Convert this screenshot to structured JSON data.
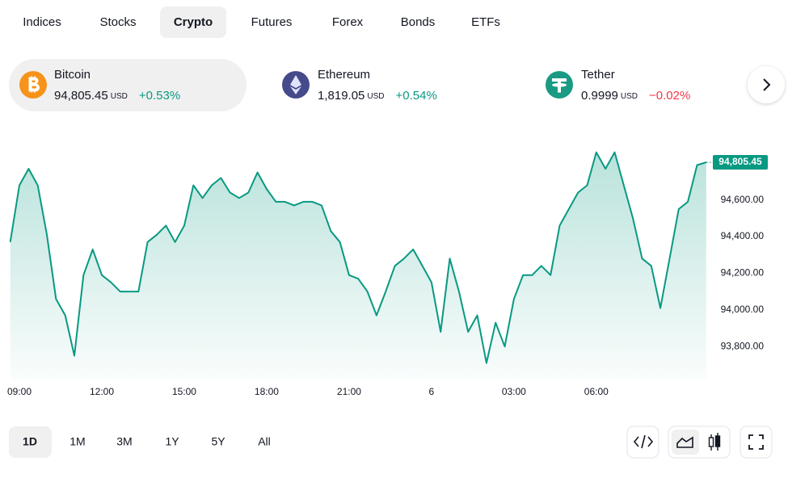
{
  "tabs": [
    "Indices",
    "Stocks",
    "Crypto",
    "Futures",
    "Forex",
    "Bonds",
    "ETFs"
  ],
  "selected_tab": 2,
  "tickers": [
    {
      "name": "Bitcoin",
      "price": "94,805.45",
      "unit": "USD",
      "change": "+0.53%"
    },
    {
      "name": "Ethereum",
      "price": "1,819.05",
      "unit": "USD",
      "change": "+0.54%"
    },
    {
      "name": "Tether",
      "price": "0.9999",
      "unit": "USD",
      "change": "−0.02%"
    }
  ],
  "chart_data": {
    "type": "line",
    "color": "#089981",
    "categories": [
      null,
      "09:00",
      null,
      null,
      null,
      null,
      null,
      null,
      null,
      null,
      "12:00",
      null,
      null,
      null,
      null,
      null,
      null,
      null,
      null,
      "15:00",
      null,
      null,
      null,
      null,
      null,
      null,
      null,
      null,
      "18:00",
      null,
      null,
      null,
      null,
      null,
      null,
      null,
      null,
      "21:00",
      null,
      null,
      null,
      null,
      null,
      null,
      null,
      null,
      "6",
      null,
      null,
      null,
      null,
      null,
      null,
      null,
      null,
      "03:00",
      null,
      null,
      null,
      null,
      null,
      null,
      null,
      null,
      "06:00",
      null,
      null,
      null,
      null,
      null,
      null,
      null,
      null,
      null,
      null,
      null,
      null
    ],
    "values": [
      94370,
      94680,
      94770,
      94680,
      94410,
      94060,
      93970,
      93750,
      94190,
      94330,
      94190,
      94150,
      94100,
      94100,
      94100,
      94370,
      94410,
      94460,
      94370,
      94460,
      94680,
      94610,
      94680,
      94720,
      94640,
      94610,
      94640,
      94750,
      94660,
      94590,
      94590,
      94570,
      94590,
      94590,
      94570,
      94430,
      94370,
      94190,
      94170,
      94100,
      93970,
      94100,
      94240,
      94280,
      94330,
      94240,
      94150,
      93880,
      94280,
      94100,
      93880,
      93970,
      93710,
      93930,
      93800,
      94060,
      94190,
      94190,
      94240,
      94190,
      94460,
      94550,
      94640,
      94680,
      94860,
      94770,
      94860,
      94680,
      94500,
      94280,
      94240,
      94010,
      94280,
      94550,
      94590,
      94790,
      94805.45
    ],
    "value_labels": [
      null,
      null,
      null,
      null,
      null,
      null,
      null,
      null,
      null,
      null,
      null,
      null,
      null,
      null,
      null,
      null,
      null,
      null,
      null,
      null,
      null,
      null,
      null,
      null,
      null,
      null,
      null,
      null,
      null,
      null,
      null,
      null,
      null,
      null,
      null,
      null,
      null,
      null,
      null,
      null,
      null,
      null,
      null,
      null,
      null,
      null,
      null,
      null,
      null,
      null,
      null,
      null,
      null,
      null,
      null,
      null,
      null,
      null,
      null,
      null,
      null,
      null,
      null,
      null,
      null,
      null,
      null,
      null,
      null,
      null,
      null,
      null,
      null,
      null,
      null,
      null,
      "94,805.45"
    ],
    "ylim": [
      93620,
      94920
    ],
    "yticks": [
      {
        "value": 93800,
        "label": "93,800.00"
      },
      {
        "value": 94000,
        "label": "94,000.00"
      },
      {
        "value": 94200,
        "label": "94,200.00"
      },
      {
        "value": 94400,
        "label": "94,400.00"
      },
      {
        "value": 94600,
        "label": "94,600.00"
      }
    ]
  },
  "ranges": [
    "1D",
    "1M",
    "3M",
    "1Y",
    "5Y",
    "All"
  ],
  "selected_range": 0
}
